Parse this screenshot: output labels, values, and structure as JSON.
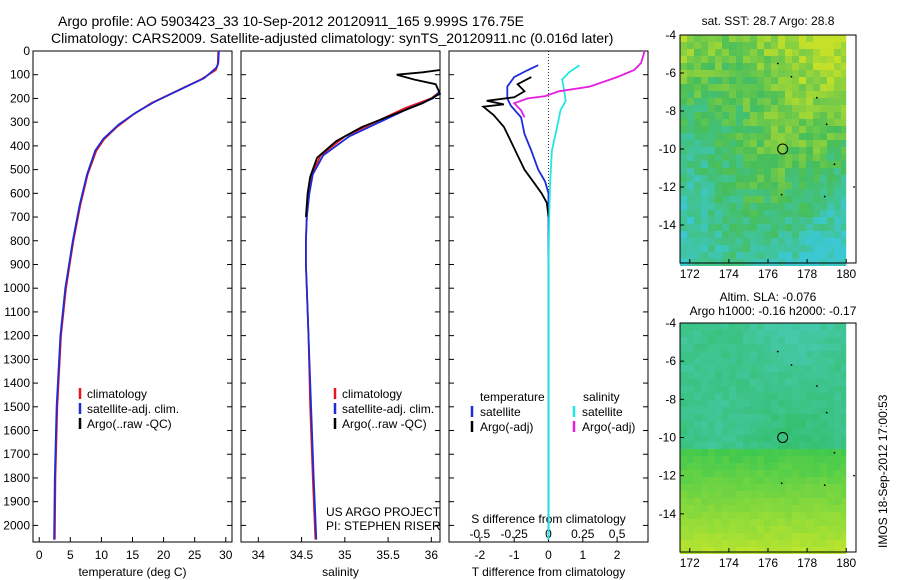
{
  "header": {
    "title_line1": "Argo profile: AO 5903423_33 10-Sep-2012 20120911_165 9.999S 176.75E",
    "title_line2": "Climatology: CARS2009. Satellite-adjusted climatology: synTS_20120911.nc (0.016d later)"
  },
  "side_label": "IMOS 18-Sep-2012 17:00:53",
  "colors": {
    "climatology": "#e8141a",
    "satellite": "#1f2bd8",
    "argo": "#000000",
    "sal_satellite": "#22e6e6",
    "sal_argo": "#e61ee0"
  },
  "chart_data": [
    {
      "type": "line",
      "xlabel": "temperature (deg C)",
      "ylabel": "",
      "xlim": [
        -1,
        31
      ],
      "ylim": [
        0,
        2070
      ],
      "xticks": [
        0,
        5,
        10,
        15,
        20,
        25,
        30
      ],
      "yticks": [
        0,
        100,
        200,
        300,
        400,
        500,
        600,
        700,
        800,
        900,
        1000,
        1100,
        1200,
        1300,
        1400,
        1500,
        1600,
        1700,
        1800,
        1900,
        2000
      ],
      "legend": [
        "climatology",
        "satellite-adj. clim.",
        "Argo(..raw -QC)"
      ],
      "legend_position": "lower-center",
      "series": [
        {
          "name": "climatology",
          "color": "#e8141a",
          "points": [
            [
              2.5,
              2060
            ],
            [
              2.6,
              1800
            ],
            [
              2.9,
              1500
            ],
            [
              3.5,
              1200
            ],
            [
              4.3,
              1000
            ],
            [
              5.5,
              800
            ],
            [
              6.6,
              650
            ],
            [
              7.8,
              520
            ],
            [
              9.2,
              420
            ],
            [
              10.5,
              370
            ],
            [
              12.5,
              320
            ],
            [
              15,
              270
            ],
            [
              18,
              220
            ],
            [
              22,
              170
            ],
            [
              26,
              120
            ],
            [
              28.4,
              80
            ],
            [
              28.7,
              60
            ],
            [
              28.8,
              0
            ]
          ]
        },
        {
          "name": "satellite-adj. clim.",
          "color": "#1f2bd8",
          "points": [
            [
              2.4,
              2060
            ],
            [
              2.5,
              1800
            ],
            [
              2.8,
              1500
            ],
            [
              3.4,
              1200
            ],
            [
              4.2,
              1000
            ],
            [
              5.4,
              800
            ],
            [
              6.5,
              650
            ],
            [
              7.7,
              520
            ],
            [
              9.0,
              420
            ],
            [
              10.3,
              370
            ],
            [
              12.8,
              310
            ],
            [
              15.5,
              260
            ],
            [
              18.5,
              215
            ],
            [
              22.5,
              165
            ],
            [
              26.5,
              115
            ],
            [
              28.5,
              70
            ],
            [
              28.8,
              50
            ],
            [
              28.9,
              0
            ]
          ]
        },
        {
          "name": "Argo(..raw -QC)",
          "color": "#000000",
          "points": []
        }
      ]
    },
    {
      "type": "line",
      "xlabel": "salinity",
      "xlim": [
        33.8,
        36.1
      ],
      "ylim": [
        0,
        2070
      ],
      "xticks": [
        34,
        34.5,
        35,
        35.5,
        36
      ],
      "legend": [
        "climatology",
        "satellite-adj. clim.",
        "Argo(..raw -QC)"
      ],
      "legend_position": "lower-right",
      "annotations": [
        "US ARGO PROJECT",
        "PI: STEPHEN RISER"
      ],
      "series": [
        {
          "name": "climatology",
          "color": "#e8141a",
          "points": [
            [
              34.66,
              2060
            ],
            [
              34.63,
              1800
            ],
            [
              34.6,
              1500
            ],
            [
              34.58,
              1200
            ],
            [
              34.56,
              1000
            ],
            [
              34.55,
              900
            ],
            [
              34.55,
              800
            ],
            [
              34.56,
              700
            ],
            [
              34.58,
              600
            ],
            [
              34.62,
              520
            ],
            [
              34.72,
              440
            ],
            [
              35.0,
              360
            ],
            [
              35.35,
              300
            ],
            [
              35.7,
              240
            ],
            [
              36.0,
              200
            ],
            [
              36.1,
              170
            ]
          ]
        },
        {
          "name": "satellite-adj. clim.",
          "color": "#1f2bd8",
          "points": [
            [
              34.67,
              2060
            ],
            [
              34.64,
              1800
            ],
            [
              34.61,
              1500
            ],
            [
              34.58,
              1200
            ],
            [
              34.56,
              1000
            ],
            [
              34.55,
              900
            ],
            [
              34.55,
              800
            ],
            [
              34.56,
              700
            ],
            [
              34.59,
              600
            ],
            [
              34.63,
              520
            ],
            [
              34.75,
              440
            ],
            [
              35.05,
              360
            ],
            [
              35.4,
              300
            ],
            [
              35.75,
              240
            ],
            [
              36.02,
              200
            ],
            [
              36.1,
              170
            ]
          ]
        },
        {
          "name": "Argo(..raw -QC)",
          "color": "#000000",
          "points": [
            [
              34.55,
              700
            ],
            [
              34.57,
              600
            ],
            [
              34.6,
              530
            ],
            [
              34.68,
              450
            ],
            [
              34.9,
              380
            ],
            [
              35.2,
              320
            ],
            [
              35.55,
              270
            ],
            [
              35.9,
              220
            ],
            [
              36.1,
              180
            ],
            [
              36.05,
              140
            ],
            [
              35.8,
              120
            ],
            [
              35.6,
              100
            ],
            [
              35.9,
              90
            ],
            [
              36.1,
              80
            ]
          ]
        }
      ]
    },
    {
      "type": "line",
      "xlabel": "T difference from climatology",
      "top_axis_label": "S difference from climatology",
      "xlim": [
        -2.9,
        2.9
      ],
      "ylim": [
        0,
        2070
      ],
      "xticks": [
        -2,
        -1,
        0,
        1,
        2
      ],
      "top_ticks": [
        "-0.5",
        "-0.25",
        "0",
        "0.25",
        "0.5"
      ],
      "legend_groups": [
        "temperature",
        "salinity"
      ],
      "legend": [
        "satellite",
        "Argo(-adj)",
        "satellite",
        "Argo(-adj)"
      ],
      "legend_position": "lower-center",
      "series": [
        {
          "name": "satellite",
          "group": "temperature",
          "color": "#1f2bd8",
          "points": [
            [
              0,
              2060
            ],
            [
              0,
              1000
            ],
            [
              0,
              700
            ],
            [
              0,
              600
            ],
            [
              -0.1,
              550
            ],
            [
              -0.3,
              500
            ],
            [
              -0.5,
              420
            ],
            [
              -0.7,
              350
            ],
            [
              -0.8,
              280
            ],
            [
              -1.1,
              230
            ],
            [
              -1.2,
              200
            ],
            [
              -1.2,
              150
            ],
            [
              -1.0,
              110
            ],
            [
              -0.6,
              80
            ],
            [
              -0.3,
              60
            ]
          ]
        },
        {
          "name": "Argo(-adj)",
          "group": "temperature",
          "color": "#000000",
          "points": [
            [
              0,
              700
            ],
            [
              -0.05,
              640
            ],
            [
              -0.2,
              600
            ],
            [
              -0.4,
              560
            ],
            [
              -0.7,
              500
            ],
            [
              -0.9,
              440
            ],
            [
              -1.1,
              380
            ],
            [
              -1.3,
              320
            ],
            [
              -1.6,
              270
            ],
            [
              -1.9,
              235
            ],
            [
              -1.3,
              225
            ],
            [
              -1.8,
              210
            ],
            [
              -1.0,
              195
            ],
            [
              -0.7,
              170
            ],
            [
              -0.9,
              140
            ],
            [
              -0.5,
              110
            ]
          ]
        },
        {
          "name": "satellite",
          "group": "salinity",
          "color": "#22e6e6",
          "points": [
            [
              0,
              2060
            ],
            [
              0,
              1200
            ],
            [
              0,
              900
            ],
            [
              0.02,
              700
            ],
            [
              0.05,
              550
            ],
            [
              0.1,
              420
            ],
            [
              0.25,
              320
            ],
            [
              0.35,
              250
            ],
            [
              0.5,
              210
            ],
            [
              0.45,
              160
            ],
            [
              0.4,
              120
            ],
            [
              0.6,
              90
            ],
            [
              0.9,
              60
            ]
          ]
        },
        {
          "name": "Argo(-adj)",
          "group": "salinity",
          "color": "#e61ee0",
          "points": [
            [
              -0.7,
              280
            ],
            [
              -0.8,
              250
            ],
            [
              -1.0,
              220
            ],
            [
              -0.6,
              200
            ],
            [
              -0.1,
              190
            ],
            [
              0.3,
              170
            ],
            [
              1.2,
              150
            ],
            [
              2.0,
              110
            ],
            [
              2.5,
              80
            ],
            [
              2.7,
              50
            ],
            [
              2.8,
              0
            ]
          ]
        }
      ]
    },
    {
      "type": "heatmap",
      "title": "sat. SST: 28.7 Argo: 28.8",
      "xticks": [
        172,
        174,
        176,
        178,
        180
      ],
      "yticks": [
        -4,
        -6,
        -8,
        -10,
        -12,
        -14
      ],
      "xlim": [
        171.5,
        180.5
      ],
      "ylim": [
        -16,
        -4
      ],
      "marker_lon": 176.75,
      "marker_lat": -9.999
    },
    {
      "type": "heatmap",
      "title": "Altim. SLA: -0.076",
      "subtitle": "Argo h1000: -0.16 h2000: -0.17",
      "xticks": [
        172,
        174,
        176,
        178,
        180
      ],
      "yticks": [
        -4,
        -6,
        -8,
        -10,
        -12,
        -14
      ],
      "xlim": [
        171.5,
        180.5
      ],
      "ylim": [
        -16,
        -4
      ],
      "marker_lon": 176.75,
      "marker_lat": -9.999
    }
  ]
}
